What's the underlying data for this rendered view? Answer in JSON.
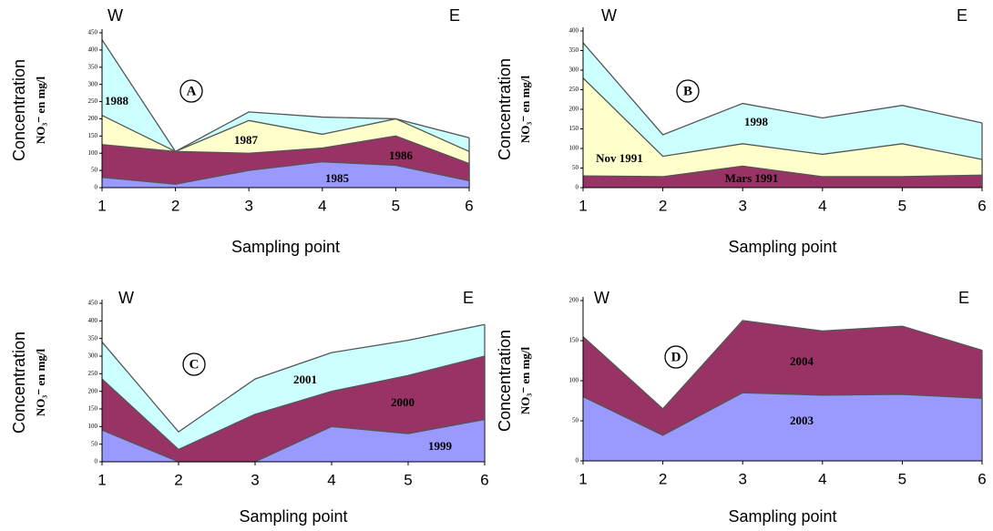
{
  "chart_data": [
    {
      "type": "area",
      "panel": "A",
      "west": "W",
      "east": "E",
      "x": [
        1,
        2,
        3,
        4,
        5,
        6
      ],
      "xlim": [
        1,
        6
      ],
      "xticks": [
        1,
        2,
        3,
        4,
        5,
        6
      ],
      "ylim": [
        0,
        450
      ],
      "yticks": [
        0,
        50,
        100,
        150,
        200,
        250,
        300,
        350,
        400,
        450
      ],
      "x_label": "Sampling point",
      "y_label": "Concentration",
      "y_unit": "NO₃⁻  en  mg/l",
      "series": [
        {
          "name": "1988",
          "color": "#ccffff",
          "values": [
            430,
            105,
            220,
            205,
            200,
            145
          ]
        },
        {
          "name": "1987",
          "color": "#ffffcc",
          "values": [
            210,
            105,
            195,
            155,
            200,
            105
          ]
        },
        {
          "name": "1986",
          "color": "#993366",
          "values": [
            125,
            105,
            100,
            115,
            150,
            70
          ]
        },
        {
          "name": "1985",
          "color": "#9999ff",
          "values": [
            30,
            10,
            50,
            75,
            65,
            20
          ]
        }
      ]
    },
    {
      "type": "area",
      "panel": "B",
      "west": "W",
      "east": "E",
      "x": [
        1,
        2,
        3,
        4,
        5,
        6
      ],
      "xlim": [
        1,
        6
      ],
      "xticks": [
        1,
        2,
        3,
        4,
        5,
        6
      ],
      "ylim": [
        0,
        400
      ],
      "yticks": [
        0,
        50,
        100,
        150,
        200,
        250,
        300,
        350,
        400
      ],
      "x_label": "Sampling point",
      "y_label": "Concentration",
      "y_unit": "NO₃⁻  en  mg/l",
      "series": [
        {
          "name": "1998",
          "color": "#ccffff",
          "values": [
            370,
            135,
            215,
            178,
            210,
            165
          ]
        },
        {
          "name": "Nov 1991",
          "color": "#ffffcc",
          "values": [
            280,
            80,
            112,
            85,
            112,
            72
          ]
        },
        {
          "name": "Mars 1991",
          "color": "#993366",
          "values": [
            30,
            28,
            55,
            28,
            28,
            32
          ]
        }
      ]
    },
    {
      "type": "area",
      "panel": "C",
      "west": "W",
      "east": "E",
      "x": [
        1,
        2,
        3,
        4,
        5,
        6
      ],
      "xlim": [
        1,
        6
      ],
      "xticks": [
        1,
        2,
        3,
        4,
        5,
        6
      ],
      "ylim": [
        0,
        450
      ],
      "yticks": [
        0,
        50,
        100,
        150,
        200,
        250,
        300,
        350,
        400,
        450
      ],
      "x_label": "Sampling point",
      "y_label": "Concentration",
      "y_unit": "NO₃⁻  en  mg/l",
      "series": [
        {
          "name": "2001",
          "color": "#ccffff",
          "values": [
            340,
            85,
            235,
            310,
            345,
            390
          ]
        },
        {
          "name": "2000",
          "color": "#993366",
          "values": [
            235,
            35,
            135,
            200,
            245,
            300
          ]
        },
        {
          "name": "1999",
          "color": "#9999ff",
          "values": [
            90,
            0,
            0,
            100,
            80,
            120
          ]
        }
      ]
    },
    {
      "type": "area",
      "panel": "D",
      "west": "W",
      "east": "E",
      "x": [
        1,
        2,
        3,
        4,
        5,
        6
      ],
      "xlim": [
        1,
        6
      ],
      "xticks": [
        1,
        2,
        3,
        4,
        5,
        6
      ],
      "ylim": [
        0,
        200
      ],
      "yticks": [
        0,
        50,
        100,
        150,
        200
      ],
      "x_label": "Sampling point",
      "y_label": "Concentration",
      "y_unit": "NO₃⁻  en  mg/l",
      "series": [
        {
          "name": "2004",
          "color": "#993366",
          "values": [
            155,
            65,
            175,
            162,
            168,
            138
          ]
        },
        {
          "name": "2003",
          "color": "#9999ff",
          "values": [
            80,
            32,
            85,
            82,
            83,
            78
          ]
        }
      ]
    }
  ]
}
